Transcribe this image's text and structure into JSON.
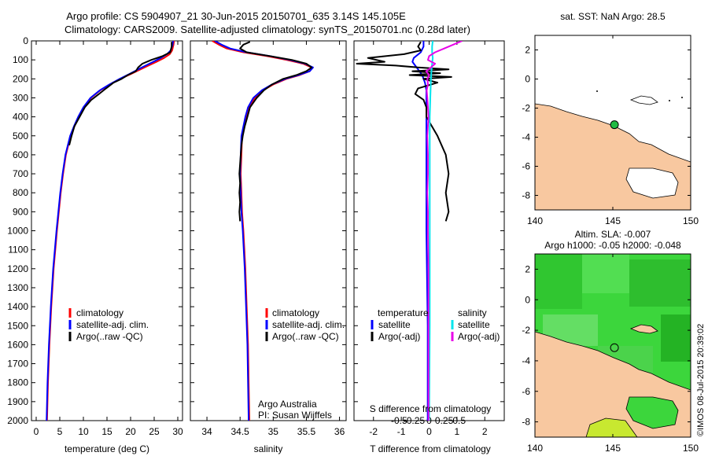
{
  "header": {
    "line1": "Argo profile: CS 5904907_21 30-Jun-2015 20150701_635 3.14S 145.105E",
    "line2": "Climatology: CARS2009. Satellite-adjusted climatology: synTS_20150701.nc (0.28d later)"
  },
  "colors": {
    "climatology": "#ff0000",
    "satellite": "#0000ff",
    "argo": "#000000",
    "sal_satellite": "#00e5ee",
    "sal_argo": "#e800e8",
    "land": "#f8c8a0",
    "float_marker": "#22bb44"
  },
  "chart_data": [
    {
      "id": "temperature",
      "type": "line",
      "xlabel": "temperature (deg C)",
      "ylabel": "",
      "xlim": [
        -1,
        31
      ],
      "ylim": [
        2000,
        0
      ],
      "xticks": [
        "0",
        "5",
        "10",
        "15",
        "20",
        "25",
        "30"
      ],
      "yticks": [
        "0",
        "100",
        "200",
        "300",
        "400",
        "500",
        "600",
        "700",
        "800",
        "900",
        "1000",
        "1100",
        "1200",
        "1300",
        "1400",
        "1500",
        "1600",
        "1700",
        "1800",
        "1900",
        "2000"
      ],
      "legend": [
        "climatology",
        "satellite-adj. clim.",
        "Argo(..raw -QC)"
      ],
      "series": [
        {
          "name": "climatology",
          "color": "#ff0000",
          "depth": [
            0,
            20,
            50,
            70,
            90,
            110,
            130,
            150,
            175,
            200,
            230,
            260,
            300,
            350,
            400,
            450,
            500,
            600,
            700,
            800,
            900,
            1000,
            1200,
            1400,
            1600,
            1800,
            2000
          ],
          "values": [
            29.2,
            29.1,
            28.8,
            28.3,
            27.1,
            25.5,
            23.8,
            22.1,
            20.0,
            17.8,
            15.6,
            13.6,
            11.6,
            10.1,
            9.0,
            8.1,
            7.3,
            6.3,
            5.7,
            5.2,
            4.8,
            4.4,
            3.7,
            3.2,
            2.8,
            2.5,
            2.3
          ]
        },
        {
          "name": "satellite-adj. clim.",
          "color": "#0000ff",
          "depth": [
            0,
            20,
            50,
            70,
            90,
            110,
            130,
            150,
            175,
            200,
            230,
            260,
            300,
            350,
            400,
            450,
            500,
            600,
            700,
            800,
            900,
            1000,
            1200,
            1400,
            1600,
            1800,
            2000
          ],
          "values": [
            29.0,
            28.9,
            28.5,
            27.7,
            26.4,
            24.8,
            23.2,
            21.6,
            19.7,
            17.7,
            15.5,
            13.5,
            11.5,
            10.0,
            8.9,
            8.0,
            7.2,
            6.2,
            5.6,
            5.1,
            4.7,
            4.3,
            3.6,
            3.1,
            2.7,
            2.4,
            2.2
          ]
        },
        {
          "name": "Argo(..raw -QC)",
          "color": "#000000",
          "depth": [
            5,
            30,
            60,
            80,
            100,
            120,
            140,
            160,
            180,
            200,
            220,
            250,
            280,
            310,
            350,
            400,
            450,
            500,
            550
          ],
          "values": [
            28.7,
            28.7,
            28.4,
            26.8,
            24.4,
            22.5,
            21.6,
            21.1,
            19.4,
            18.1,
            16.4,
            14.8,
            13.3,
            11.7,
            10.3,
            9.2,
            8.1,
            7.5,
            7.0
          ]
        }
      ]
    },
    {
      "id": "salinity",
      "type": "line",
      "xlabel": "salinity",
      "ylabel": "",
      "xlim": [
        33.75,
        36.1
      ],
      "ylim": [
        2000,
        0
      ],
      "xticks": [
        "34",
        "34.5",
        "35",
        "35.5",
        "36"
      ],
      "legend": [
        "climatology",
        "satellite-adj. clim.",
        "Argo(..raw -QC)"
      ],
      "annotations": [
        "Argo Australia",
        "PI: Susan Wijffels"
      ],
      "series": [
        {
          "name": "climatology",
          "color": "#ff0000",
          "depth": [
            0,
            20,
            40,
            60,
            80,
            100,
            120,
            140,
            160,
            180,
            200,
            230,
            260,
            300,
            350,
            400,
            450,
            500,
            600,
            700,
            800,
            900,
            1000,
            1200,
            1400,
            1600,
            1800,
            2000
          ],
          "values": [
            34.08,
            34.18,
            34.3,
            34.55,
            34.9,
            35.2,
            35.45,
            35.58,
            35.55,
            35.4,
            35.2,
            35.0,
            34.85,
            34.72,
            34.64,
            34.6,
            34.56,
            34.53,
            34.52,
            34.51,
            34.52,
            34.53,
            34.55,
            34.58,
            34.6,
            34.62,
            34.63,
            34.64
          ]
        },
        {
          "name": "satellite-adj. clim.",
          "color": "#0000ff",
          "depth": [
            0,
            20,
            40,
            60,
            80,
            100,
            120,
            140,
            160,
            180,
            200,
            230,
            260,
            300,
            350,
            400,
            450,
            500,
            600,
            700,
            800,
            900,
            1000,
            1200,
            1400,
            1600,
            1800,
            2000
          ],
          "values": [
            34.12,
            34.22,
            34.35,
            34.6,
            34.95,
            35.25,
            35.48,
            35.6,
            35.55,
            35.38,
            35.18,
            34.98,
            34.83,
            34.7,
            34.62,
            34.58,
            34.55,
            34.52,
            34.51,
            34.5,
            34.51,
            34.52,
            34.54,
            34.57,
            34.59,
            34.61,
            34.62,
            34.63
          ]
        },
        {
          "name": "Argo(..raw -QC)",
          "color": "#000000",
          "depth": [
            5,
            20,
            40,
            60,
            80,
            100,
            120,
            140,
            160,
            180,
            200,
            230,
            260,
            300,
            350,
            400,
            450,
            500,
            550,
            600,
            700,
            750,
            800,
            850,
            900,
            950
          ],
          "values": [
            34.65,
            34.55,
            34.5,
            34.6,
            34.95,
            35.28,
            35.5,
            35.58,
            35.5,
            35.35,
            35.15,
            34.98,
            34.86,
            34.75,
            34.65,
            34.61,
            34.57,
            34.54,
            34.52,
            34.51,
            34.49,
            34.5,
            34.49,
            34.5,
            34.49,
            34.5
          ]
        }
      ]
    },
    {
      "id": "difference",
      "type": "line",
      "xlabel": "T difference from climatology",
      "xlabel_top": "S difference from climatology",
      "xlim": [
        -2.7,
        2.7
      ],
      "ylim": [
        2000,
        0
      ],
      "xticks": [
        "-2",
        "-1",
        "0",
        "1",
        "2"
      ],
      "xticks_top": [
        "-0.5",
        "-0.25",
        "0",
        "0.25",
        "0.5"
      ],
      "legend_titles": [
        "temperature",
        "salinity"
      ],
      "legend": [
        "satellite",
        "Argo(-adj)",
        "satellite",
        "Argo(-adj)"
      ],
      "series": [
        {
          "name": "temperature satellite",
          "color": "#0000ff",
          "depth": [
            0,
            30,
            60,
            90,
            110,
            130,
            150,
            180,
            220,
            260,
            300,
            400,
            600,
            1000,
            1500,
            2000
          ],
          "values": [
            -0.2,
            -0.2,
            -0.3,
            -0.55,
            -0.6,
            -0.5,
            -0.4,
            -0.25,
            -0.15,
            -0.1,
            -0.1,
            -0.1,
            -0.1,
            -0.1,
            -0.05,
            -0.05
          ]
        },
        {
          "name": "temperature Argo(-adj)",
          "color": "#000000",
          "depth": [
            5,
            30,
            50,
            70,
            90,
            110,
            120,
            130,
            140,
            150,
            160,
            170,
            180,
            190,
            200,
            220,
            250,
            280,
            310,
            350,
            400,
            500,
            600,
            700,
            800,
            900,
            950
          ],
          "values": [
            -0.3,
            -0.4,
            -0.3,
            -0.9,
            -2.2,
            -1.6,
            -2.6,
            -1.2,
            -0.4,
            0.7,
            -0.6,
            0.4,
            -0.7,
            0.8,
            -0.2,
            0.3,
            -0.4,
            -0.5,
            -0.2,
            -0.1,
            -0.1,
            0.3,
            0.6,
            0.7,
            0.6,
            0.7,
            0.6
          ]
        },
        {
          "name": "salinity satellite",
          "color": "#00e5ee",
          "depth": [
            0,
            30,
            60,
            90,
            120,
            150,
            200,
            300,
            400,
            600,
            800,
            1000,
            1500,
            2000
          ],
          "values": [
            0.06,
            0.05,
            0.05,
            0.06,
            0.05,
            0.04,
            0.03,
            0.02,
            0.01,
            0.01,
            0.01,
            0.01,
            0.01,
            0.0
          ]
        },
        {
          "name": "salinity Argo(-adj)",
          "color": "#e800e8",
          "depth": [
            0,
            20,
            40,
            60,
            80,
            100,
            120,
            140,
            160,
            180,
            200,
            230,
            260,
            300,
            350,
            400,
            500,
            600,
            700,
            800,
            900,
            1000,
            1200,
            1500,
            2000
          ],
          "values": [
            0.55,
            0.4,
            0.25,
            0.1,
            0.0,
            -0.02,
            0.1,
            0.03,
            -0.05,
            0.0,
            -0.03,
            -0.02,
            -0.04,
            -0.03,
            -0.02,
            -0.01,
            -0.03,
            -0.02,
            -0.02,
            -0.03,
            -0.02,
            -0.02,
            -0.01,
            -0.01,
            -0.01
          ]
        }
      ]
    },
    {
      "id": "sst_map",
      "type": "map",
      "title": "sat. SST: NaN Argo: 28.5",
      "xlim": [
        140,
        150
      ],
      "ylim": [
        -9,
        3
      ],
      "xticks": [
        "140",
        "145",
        "150"
      ],
      "yticks": [
        "2",
        "0",
        "-2",
        "-4",
        "-6",
        "-8"
      ],
      "float": {
        "lon": 145.105,
        "lat": -3.14
      }
    },
    {
      "id": "sla_map",
      "type": "map",
      "title": "Altim. SLA: -0.007",
      "subtitle": "Argo h1000: -0.05 h2000: -0.048",
      "xlim": [
        140,
        150
      ],
      "ylim": [
        -9,
        3
      ],
      "xticks": [
        "140",
        "145",
        "150"
      ],
      "yticks": [
        "2",
        "0",
        "-2",
        "-4",
        "-6",
        "-8"
      ],
      "float": {
        "lon": 145.105,
        "lat": -3.14
      }
    }
  ],
  "side_text": "©IMOS 08-Jul-2015 20:39:02"
}
